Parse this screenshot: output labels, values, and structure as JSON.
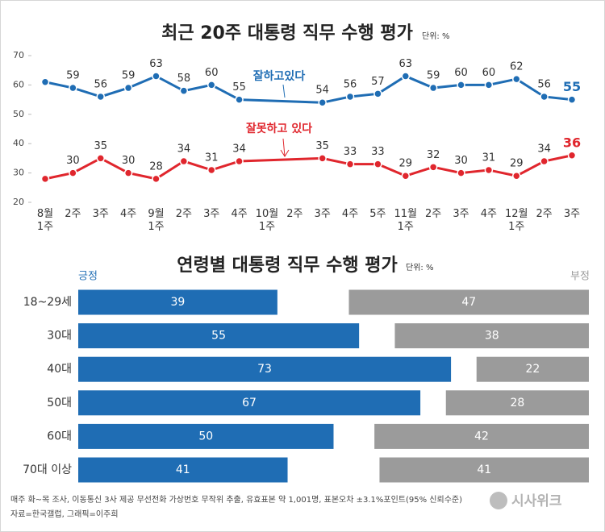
{
  "chart_data": [
    {
      "type": "line",
      "title": "최근 20주 대통령 직무 수행 평가",
      "unit": "단위: %",
      "categories": [
        "8월\n1주",
        "2주",
        "3주",
        "4주",
        "9월\n1주",
        "2주",
        "3주",
        "4주",
        "10월\n1주",
        "2주",
        "3주",
        "4주",
        "5주",
        "11월\n1주",
        "2주",
        "3주",
        "4주",
        "12월\n1주",
        "2주",
        "3주"
      ],
      "ylim": [
        20,
        70
      ],
      "yticks": [
        20,
        30,
        40,
        50,
        60,
        70
      ],
      "grid": false,
      "series": [
        {
          "name": "잘하고있다",
          "color": "#1f6db4",
          "values": [
            61,
            59,
            56,
            59,
            63,
            58,
            60,
            55,
            null,
            null,
            54,
            56,
            57,
            63,
            59,
            60,
            60,
            62,
            56,
            55
          ]
        },
        {
          "name": "잘못하고 있다",
          "color": "#e0262d",
          "values": [
            28,
            30,
            35,
            30,
            28,
            34,
            31,
            34,
            null,
            null,
            35,
            33,
            33,
            29,
            32,
            30,
            31,
            29,
            34,
            36
          ]
        }
      ]
    },
    {
      "type": "bar",
      "title": "연령별 대통령 직무 수행 평가",
      "unit": "단위: %",
      "categories": [
        "18~29세",
        "30대",
        "40대",
        "50대",
        "60대",
        "70대 이상"
      ],
      "xlim": [
        0,
        100
      ],
      "series": [
        {
          "name": "긍정",
          "color": "#1f6db4",
          "values": [
            39,
            55,
            73,
            67,
            50,
            41
          ]
        },
        {
          "name": "부정",
          "color": "#9b9b9b",
          "values": [
            47,
            38,
            22,
            28,
            42,
            41
          ]
        }
      ]
    }
  ],
  "notes": [
    "매주 화~목 조사, 이동통신 3사 제공 무선전화 가상번호 무작위 추출, 유효표본 약 1,001명, 표본오차 ±3.1%포인트(95% 신뢰수준)",
    "자료=한국갤럽, 그래픽=이주희"
  ],
  "logo": "시사위크"
}
